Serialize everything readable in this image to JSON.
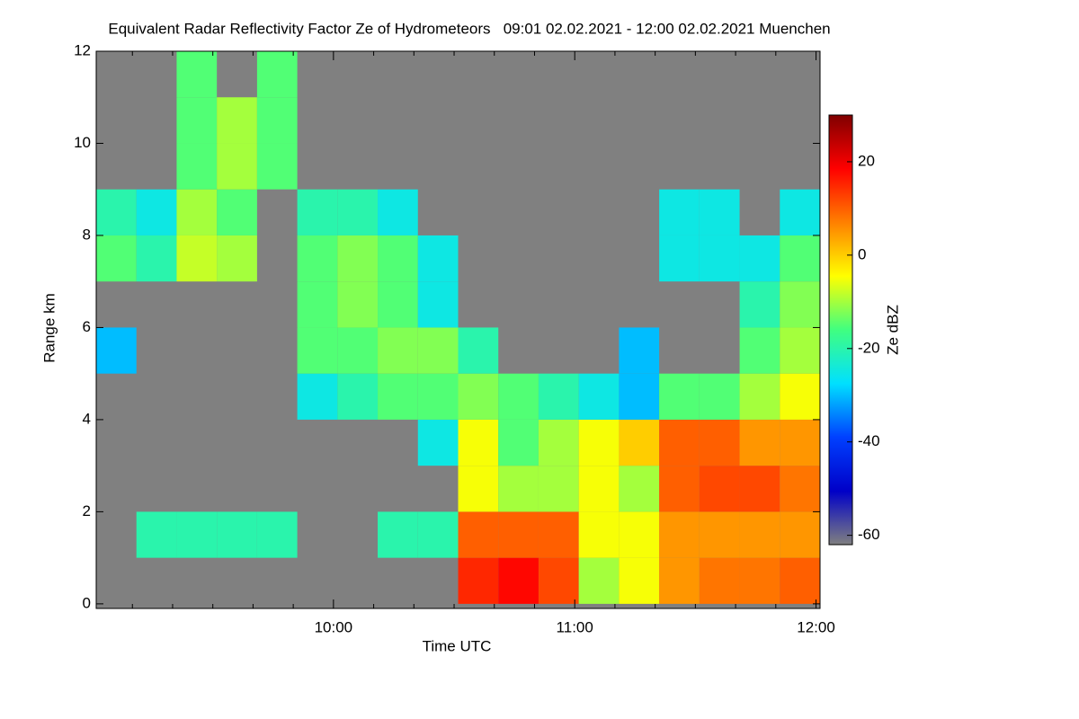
{
  "chart_data": {
    "type": "heatmap",
    "title": "Equivalent Radar Reflectivity Factor Ze of Hydrometeors   09:01 02.02.2021 - 12:00 02.02.2021 Muenchen",
    "xlabel": "Time UTC",
    "ylabel": "Range km",
    "zlabel": "Ze dBZ",
    "xlim": [
      541,
      721
    ],
    "xticks": [
      {
        "value": 600,
        "label": "10:00"
      },
      {
        "value": 660,
        "label": "11:00"
      },
      {
        "value": 720,
        "label": "12:00"
      }
    ],
    "xminorticks": [
      550,
      560,
      570,
      580,
      590,
      610,
      620,
      630,
      640,
      650,
      670,
      680,
      690,
      700,
      710
    ],
    "ylim": [
      -0.1,
      12
    ],
    "yticks": [
      0,
      2,
      4,
      6,
      8,
      10,
      12
    ],
    "x": [
      546,
      556,
      566,
      576,
      586,
      596,
      606,
      616,
      626,
      636,
      646,
      656,
      666,
      676,
      686,
      696,
      706,
      716
    ],
    "y": [
      0.5,
      1.5,
      2.5,
      3.5,
      4.5,
      5.5,
      6.5,
      7.5,
      8.5,
      9.5,
      10.5,
      11.5
    ],
    "z": [
      [
        null,
        null,
        null,
        null,
        null,
        null,
        null,
        null,
        null,
        15,
        18,
        12,
        -10,
        -5,
        5,
        8,
        8,
        10
      ],
      [
        null,
        -20,
        -20,
        -20,
        -20,
        null,
        null,
        -20,
        -20,
        10,
        10,
        10,
        -5,
        -5,
        5,
        5,
        5,
        5
      ],
      [
        null,
        null,
        null,
        null,
        null,
        null,
        null,
        null,
        null,
        -5,
        -10,
        -10,
        -5,
        -10,
        10,
        12,
        12,
        8
      ],
      [
        null,
        null,
        null,
        null,
        null,
        null,
        null,
        null,
        -25,
        -5,
        -15,
        -10,
        -5,
        0,
        10,
        10,
        5,
        5
      ],
      [
        null,
        null,
        null,
        null,
        null,
        -25,
        -20,
        -15,
        -15,
        -12,
        -15,
        -20,
        -25,
        -30,
        -15,
        -15,
        -10,
        -5
      ],
      [
        -30,
        null,
        null,
        null,
        null,
        -15,
        -15,
        -12,
        -12,
        -20,
        null,
        null,
        null,
        -30,
        null,
        null,
        -15,
        -10
      ],
      [
        null,
        null,
        null,
        null,
        null,
        -15,
        -12,
        -15,
        -25,
        null,
        null,
        null,
        null,
        null,
        null,
        null,
        -20,
        -12
      ],
      [
        -15,
        -20,
        -8,
        -10,
        null,
        -15,
        -12,
        -15,
        -25,
        null,
        null,
        null,
        null,
        null,
        -25,
        -25,
        -25,
        -15
      ],
      [
        -20,
        -25,
        -10,
        -15,
        null,
        -20,
        -20,
        -25,
        null,
        null,
        null,
        null,
        null,
        null,
        -25,
        -25,
        null,
        -25
      ],
      [
        null,
        null,
        -15,
        -10,
        -15,
        null,
        null,
        null,
        null,
        null,
        null,
        null,
        null,
        null,
        null,
        null,
        null,
        null
      ],
      [
        null,
        null,
        -15,
        -10,
        -15,
        null,
        null,
        null,
        null,
        null,
        null,
        null,
        null,
        null,
        null,
        null,
        null,
        null
      ],
      [
        null,
        null,
        -15,
        null,
        -15,
        null,
        null,
        null,
        null,
        null,
        null,
        null,
        null,
        null,
        null,
        null,
        null,
        null
      ]
    ],
    "zlim": [
      -62,
      30
    ],
    "zticks": [
      -60,
      -40,
      -20,
      0,
      20
    ],
    "colors": [
      "#808080",
      "#0000c8",
      "#0040ff",
      "#00e0ff",
      "#40ff80",
      "#ffff00",
      "#ff8000",
      "#ff0000",
      "#800000"
    ],
    "nodata_color": "#808080"
  }
}
